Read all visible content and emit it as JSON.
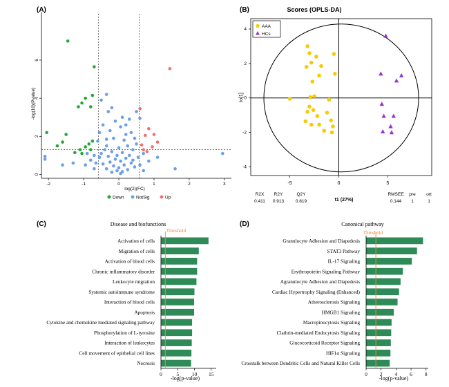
{
  "colors": {
    "down": "#22a832",
    "notsig": "#6a9fe8",
    "up": "#ee7070",
    "aaa": "#f5cc00",
    "hcs": "#9933cc",
    "bar": "#2e8b57",
    "threshold": "#f08a3c"
  },
  "chart_data": [
    {
      "panel": "(A)",
      "type": "scatter",
      "xlabel": "log(2)(FC)",
      "ylabel": "-log(10)(Pvalue)",
      "xlim": [
        -2.2,
        3.2
      ],
      "ylim": [
        -0.2,
        8.5
      ],
      "x_ticks": [
        "-2",
        "-1",
        "0",
        "1",
        "2",
        "3"
      ],
      "y_ticks": [
        "0",
        "2",
        "4",
        "6"
      ],
      "fc_cutoffs": [
        -0.58,
        0.58
      ],
      "p_cutoff": 1.3,
      "legend": [
        "Down",
        "NotSig",
        "Up"
      ],
      "series": [
        {
          "name": "Down",
          "points": [
            [
              -1.45,
              7.0
            ],
            [
              -0.7,
              5.65
            ],
            [
              -0.75,
              4.15
            ],
            [
              -0.95,
              4.0
            ],
            [
              -1.05,
              3.75
            ],
            [
              -0.8,
              3.55
            ],
            [
              -1.15,
              3.55
            ],
            [
              -2.05,
              2.2
            ],
            [
              -1.5,
              2.1
            ],
            [
              -1.6,
              1.7
            ],
            [
              -0.75,
              1.75
            ],
            [
              -0.85,
              1.6
            ],
            [
              -1.75,
              1.5
            ],
            [
              -0.95,
              1.45
            ],
            [
              -0.8,
              1.3
            ],
            [
              -1.1,
              1.3
            ],
            [
              -1.25,
              1.15
            ],
            [
              -1.05,
              1.1
            ]
          ]
        },
        {
          "name": "NotSig",
          "points": [
            [
              -0.35,
              4.2
            ],
            [
              -0.5,
              3.9
            ],
            [
              -0.2,
              3.5
            ],
            [
              -0.3,
              3.3
            ],
            [
              0.1,
              3.0
            ],
            [
              -0.1,
              2.8
            ],
            [
              0.3,
              2.9
            ],
            [
              -0.45,
              2.6
            ],
            [
              0.05,
              2.5
            ],
            [
              0.2,
              2.6
            ],
            [
              -0.25,
              2.3
            ],
            [
              0.35,
              2.2
            ],
            [
              -0.55,
              2.2
            ],
            [
              0.45,
              1.9
            ],
            [
              -0.15,
              1.9
            ],
            [
              0.15,
              1.8
            ],
            [
              -0.6,
              1.75
            ],
            [
              0.5,
              1.6
            ],
            [
              0.25,
              1.5
            ],
            [
              -0.35,
              1.5
            ],
            [
              0.0,
              1.4
            ],
            [
              -0.4,
              1.3
            ],
            [
              0.4,
              1.3
            ],
            [
              -0.2,
              1.2
            ],
            [
              0.1,
              1.15
            ],
            [
              -0.05,
              1.0
            ],
            [
              0.3,
              1.0
            ],
            [
              -0.3,
              0.95
            ],
            [
              0.2,
              0.85
            ],
            [
              -0.1,
              0.8
            ],
            [
              0.05,
              0.7
            ],
            [
              -0.25,
              0.65
            ],
            [
              0.35,
              0.6
            ],
            [
              -0.45,
              0.55
            ],
            [
              0.15,
              0.5
            ],
            [
              -0.15,
              0.45
            ],
            [
              0.45,
              0.4
            ],
            [
              0.0,
              0.35
            ],
            [
              -0.35,
              0.3
            ],
            [
              0.25,
              0.25
            ],
            [
              -0.05,
              0.2
            ],
            [
              0.1,
              0.15
            ],
            [
              -0.2,
              0.12
            ],
            [
              0.05,
              0.05
            ],
            [
              -0.55,
              0.9
            ],
            [
              0.55,
              0.9
            ],
            [
              -0.65,
              0.6
            ],
            [
              0.6,
              0.5
            ],
            [
              -0.8,
              0.75
            ],
            [
              -0.95,
              0.5
            ],
            [
              -1.3,
              0.6
            ],
            [
              -1.6,
              0.5
            ],
            [
              -2.1,
              0.8
            ],
            [
              -2.1,
              0.95
            ],
            [
              -0.9,
              1.1
            ],
            [
              -0.7,
              1.0
            ],
            [
              0.7,
              1.1
            ],
            [
              0.85,
              0.7
            ],
            [
              1.1,
              0.9
            ],
            [
              1.6,
              0.3
            ],
            [
              0.5,
              3.3
            ],
            [
              0.6,
              2.95
            ],
            [
              2.95,
              1.1
            ],
            [
              -0.35,
              1.85
            ],
            [
              0.2,
              2.1
            ],
            [
              -0.5,
              1.1
            ],
            [
              0.4,
              0.75
            ],
            [
              -0.7,
              0.3
            ],
            [
              0.7,
              0.2
            ]
          ]
        },
        {
          "name": "Up",
          "points": [
            [
              1.45,
              5.55
            ],
            [
              0.6,
              3.45
            ],
            [
              0.85,
              2.4
            ],
            [
              1.0,
              2.1
            ],
            [
              0.75,
              2.05
            ],
            [
              1.1,
              1.7
            ],
            [
              0.65,
              1.55
            ],
            [
              0.95,
              1.45
            ],
            [
              0.7,
              1.3
            ],
            [
              0.8,
              1.2
            ]
          ]
        }
      ]
    },
    {
      "panel": "(B)",
      "type": "scatter",
      "title": "Scores (OPLS-DA)",
      "xlabel": "t1 (27%)",
      "ylabel": "to[1]",
      "xlim": [
        -9,
        9.5
      ],
      "ylim": [
        -4.5,
        4.6
      ],
      "x_ticks": [
        "-5",
        "0",
        "5"
      ],
      "y_ticks": [
        "4",
        "2",
        "0",
        "-2",
        "-4"
      ],
      "legend": [
        "AAA",
        "HCs"
      ],
      "series": [
        {
          "name": "AAA",
          "points": [
            [
              -3.2,
              3.0
            ],
            [
              -3.0,
              2.6
            ],
            [
              -0.5,
              2.55
            ],
            [
              -2.3,
              2.4
            ],
            [
              -2.8,
              2.05
            ],
            [
              -1.8,
              1.85
            ],
            [
              -3.3,
              1.8
            ],
            [
              -0.4,
              1.4
            ],
            [
              -2.0,
              1.3
            ],
            [
              -2.7,
              0.95
            ],
            [
              -2.9,
              0.05
            ],
            [
              -5.0,
              -0.05
            ],
            [
              -2.5,
              0.1
            ],
            [
              -1.0,
              -0.1
            ],
            [
              -3.0,
              -0.5
            ],
            [
              -2.6,
              -0.7
            ],
            [
              -3.2,
              -0.8
            ],
            [
              -1.2,
              -0.85
            ],
            [
              -2.2,
              -1.05
            ],
            [
              -3.4,
              -1.35
            ],
            [
              -2.8,
              -1.55
            ],
            [
              -0.8,
              -1.3
            ],
            [
              -2.0,
              -1.55
            ],
            [
              -1.5,
              -1.9
            ],
            [
              -0.6,
              -1.65
            ],
            [
              -0.7,
              -2.0
            ]
          ]
        },
        {
          "name": "HCs",
          "points": [
            [
              4.8,
              3.6
            ],
            [
              4.3,
              1.4
            ],
            [
              6.4,
              1.3
            ],
            [
              5.9,
              1.0
            ],
            [
              4.4,
              -0.35
            ],
            [
              4.6,
              -1.05
            ],
            [
              5.6,
              -1.05
            ],
            [
              5.3,
              -1.65
            ],
            [
              4.5,
              -1.95
            ],
            [
              5.4,
              -2.0
            ]
          ]
        }
      ],
      "stats": [
        {
          "label": "R2X",
          "value": "0.411"
        },
        {
          "label": "R2Y",
          "value": "0.913"
        },
        {
          "label": "Q2Y",
          "value": "0.819"
        },
        {
          "label": "RMSEE",
          "value": "0.144"
        },
        {
          "label": "pre",
          "value": "1"
        },
        {
          "label": "ort",
          "value": "1"
        }
      ]
    },
    {
      "panel": "(C)",
      "type": "bar",
      "orientation": "horizontal",
      "title": "Disease and biofunctions",
      "threshold_label": "Threshold",
      "threshold": 1.3,
      "xlabel": "-log(p-value)",
      "xlim": [
        0,
        16.5
      ],
      "x_ticks": [
        0,
        5,
        10,
        15
      ],
      "categories": [
        "Activation of cells",
        "Migration of cells",
        "Activation of blood cells",
        "Chronic inflammatory disorder",
        "Leukocyte migration",
        "Systemic autoimmune syndrome",
        "Interaction of blood cells",
        "Apoptosis",
        "Cytokine and chemokine mediated signaling pathway",
        "Phosphorylation of L-tyrosine",
        "Interaction of leukocytes",
        "Cell movement of epithelial cell lines",
        "Necrosis"
      ],
      "values": [
        14.2,
        11.3,
        10.8,
        10.8,
        10.6,
        10.0,
        9.9,
        9.9,
        9.3,
        9.3,
        9.2,
        9.1,
        9.0
      ]
    },
    {
      "panel": "(D)",
      "type": "bar",
      "orientation": "horizontal",
      "title": "Canonical pathway",
      "threshold_label": "Threshold",
      "threshold": 1.3,
      "xlabel": "-log(p-value)",
      "xlim": [
        0,
        8.3
      ],
      "x_ticks": [
        0,
        2,
        4,
        6,
        8
      ],
      "categories": [
        "Granulocyte Adhesion and Diapedesis",
        "STAT3 Pathway",
        "IL-17 Signaling",
        "Erythropoietin Signaling Pathway",
        "Agranulocyte Adhesion and Diapedesis",
        "Cardiac Hypertrophy Signaling (Enhanced)",
        "Atherosclerosis Signaling",
        "HMGB1 Signaling",
        "Macropinocytosis Signaling",
        "Clathrin-mediated Endocytosis Signaling",
        "Glucocorticoid Receptor Signaling",
        "HIF1α Signaling",
        "Crosstalk between Dendritic Cells and Natural Killer Cells"
      ],
      "values": [
        7.6,
        6.8,
        6.1,
        4.9,
        4.6,
        4.4,
        4.2,
        3.7,
        3.4,
        3.35,
        3.3,
        3.25,
        3.15
      ]
    }
  ]
}
